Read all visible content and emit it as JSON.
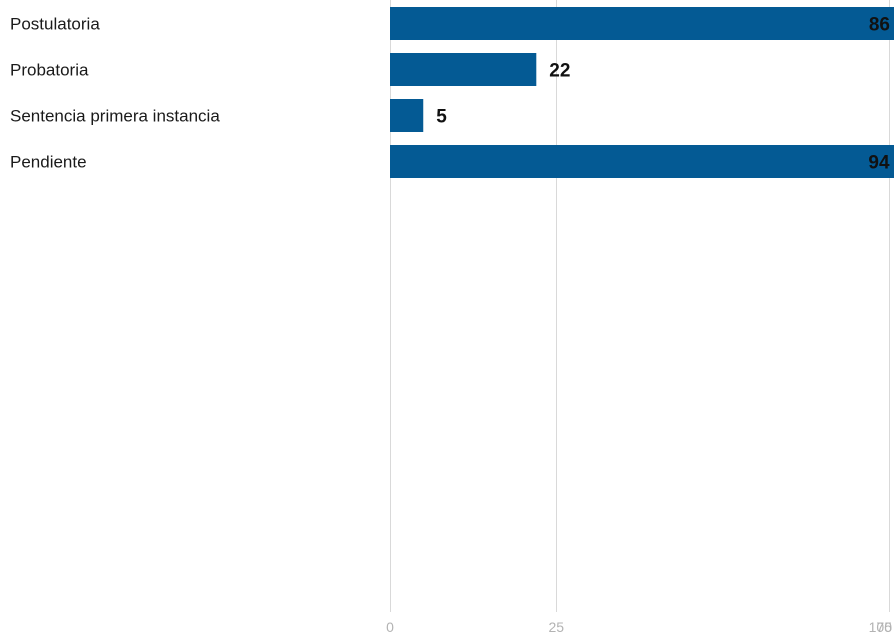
{
  "chart_data": {
    "type": "bar",
    "orientation": "horizontal",
    "title": "",
    "xlabel": "",
    "ylabel": "",
    "categories": [
      "Postulatoria",
      "Probatoria",
      "Sentencia primera instancia",
      "Pendiente"
    ],
    "values": [
      86,
      22,
      5,
      94
    ],
    "x_ticks": [
      0,
      25,
      75,
      100
    ],
    "x_tick_labels": [
      "0",
      "25",
      "75",
      "100"
    ],
    "xlim": [
      0,
      100
    ],
    "grid": true,
    "legend": "none",
    "colors": {
      "bar": "#045a94",
      "grid": "#d9d9d9",
      "tick_text": "#b3b3b3",
      "label_text": "#1a1a1a",
      "value_text": "#111111"
    }
  }
}
